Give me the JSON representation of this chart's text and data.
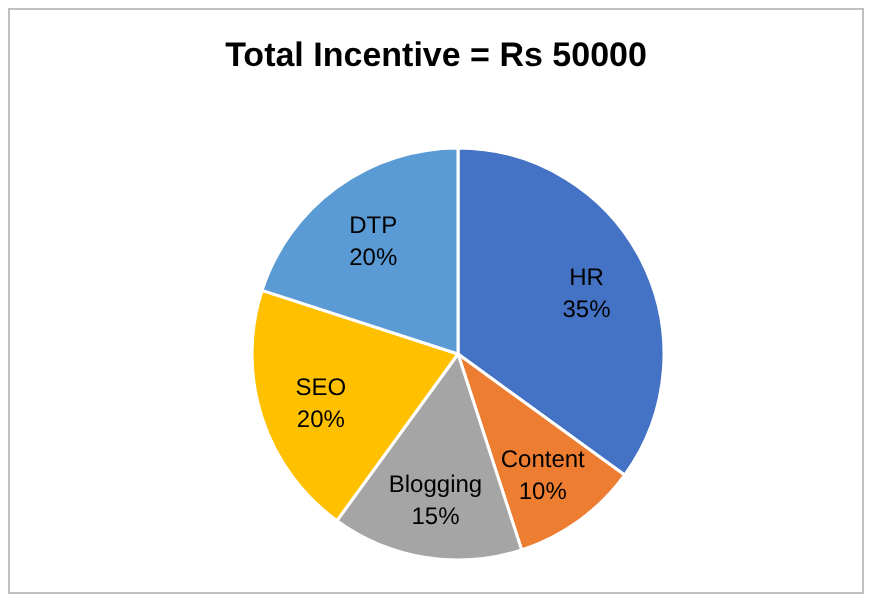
{
  "chart_data": {
    "type": "pie",
    "title": "Total Incentive = Rs 50000",
    "categories": [
      "HR",
      "Content",
      "Blogging",
      "SEO",
      "DTP"
    ],
    "values": [
      35,
      10,
      15,
      20,
      20
    ],
    "colors": [
      "#4472c4",
      "#ed7d31",
      "#a5a5a5",
      "#ffc000",
      "#5b9bd5"
    ],
    "value_labels": [
      "35%",
      "10%",
      "15%",
      "20%",
      "20%"
    ]
  }
}
